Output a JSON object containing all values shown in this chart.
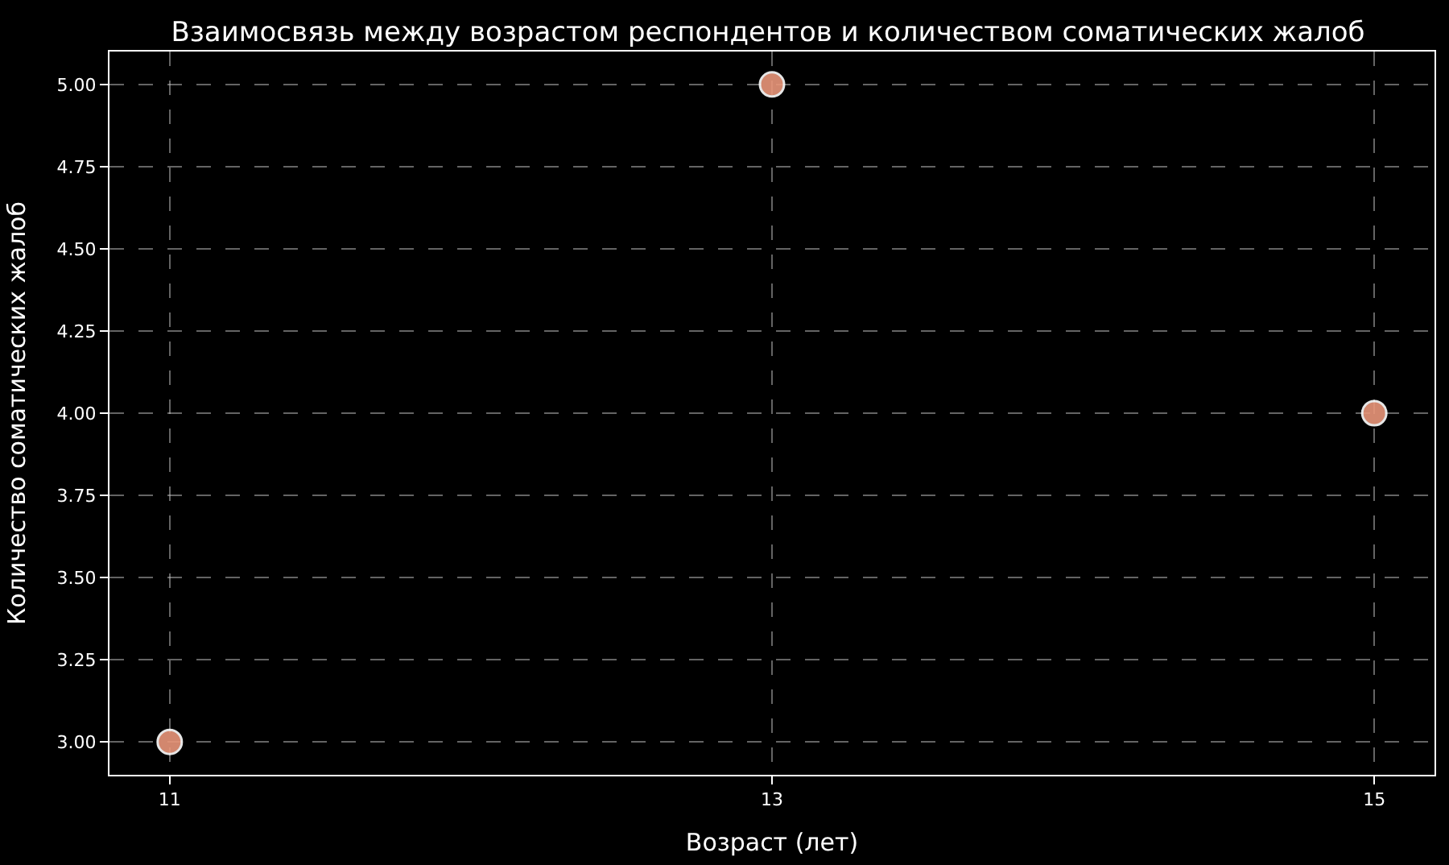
{
  "chart_data": {
    "type": "scatter",
    "title": "Взаимосвязь между возрастом респондентов и количеством соматических жалоб",
    "xlabel": "Возраст (лет)",
    "ylabel": "Количество соматических жалоб",
    "x": [
      11,
      13,
      15
    ],
    "series": [
      {
        "color": "#e9967a",
        "values": [
          3,
          5,
          4
        ]
      }
    ],
    "xlim": [
      10.8,
      15.2
    ],
    "xticks": [
      11,
      13,
      15
    ],
    "ylim": [
      2.9,
      5.1
    ],
    "yticks": [
      {
        "value": 3,
        "label": "3.00"
      },
      {
        "value": 3.25,
        "label": "3.25"
      },
      {
        "value": 3.5,
        "label": "3.50"
      },
      {
        "value": 3.75,
        "label": "3.75"
      },
      {
        "value": 4,
        "label": "4.00"
      },
      {
        "value": 4.25,
        "label": "4.25"
      },
      {
        "value": 4.5,
        "label": "4.50"
      },
      {
        "value": 4.75,
        "label": "4.75"
      },
      {
        "value": 5,
        "label": "5.00"
      }
    ],
    "grid": true,
    "marker": "circle"
  }
}
